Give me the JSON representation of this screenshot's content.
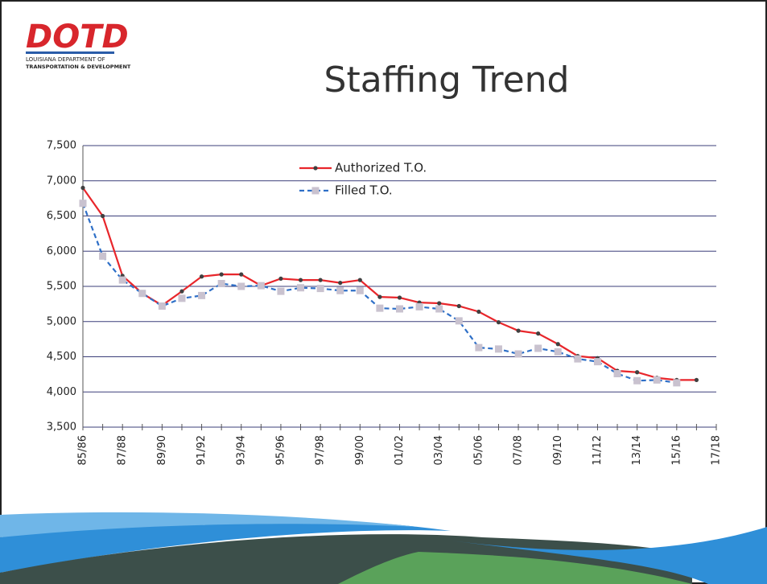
{
  "logo": {
    "mark": "DOTD",
    "line1": "LOUISIANA DEPARTMENT OF",
    "line2": "TRANSPORTATION & DEVELOPMENT"
  },
  "chart_data": {
    "type": "line",
    "title": "Staffing Trend",
    "categories": [
      "85/86",
      null,
      "87/88",
      null,
      "89/90",
      null,
      "91/92",
      null,
      "93/94",
      null,
      "95/96",
      null,
      "97/98",
      null,
      "99/00",
      null,
      "01/02",
      null,
      "03/04",
      null,
      "05/06",
      null,
      "07/08",
      null,
      "09/10",
      null,
      "11/12",
      null,
      "13/14",
      null,
      "15/16",
      null,
      "17/18"
    ],
    "series": [
      {
        "name": "Authorized T.O.",
        "color": "#e8262b",
        "marker_color": "#404040",
        "values": [
          6900,
          6500,
          5650,
          5400,
          5230,
          5430,
          5640,
          5670,
          5670,
          5510,
          5610,
          5590,
          5590,
          5550,
          5590,
          5350,
          5340,
          5270,
          5260,
          5220,
          5140,
          4990,
          4870,
          4830,
          4680,
          4510,
          4480,
          4300,
          4280,
          4200,
          4170,
          4170,
          null
        ]
      },
      {
        "name": "Filled T.O.",
        "color": "#2e6fc7",
        "marker_color": "#c9c2cf",
        "values": [
          6680,
          5930,
          5590,
          5400,
          5220,
          5330,
          5370,
          5540,
          5500,
          5510,
          5430,
          5480,
          5470,
          5440,
          5440,
          5190,
          5180,
          5210,
          5180,
          5010,
          4630,
          4610,
          4540,
          4620,
          4570,
          4470,
          4430,
          4260,
          4160,
          4170,
          4130,
          null,
          null
        ]
      }
    ],
    "ylim": [
      3500,
      7500
    ],
    "yticks": [
      {
        "value": 3500,
        "label": "3,500"
      },
      {
        "value": 4000,
        "label": "4,000"
      },
      {
        "value": 4500,
        "label": "4,500"
      },
      {
        "value": 5000,
        "label": "5,000"
      },
      {
        "value": 5500,
        "label": "5,500"
      },
      {
        "value": 6000,
        "label": "6,000"
      },
      {
        "value": 6500,
        "label": "6,500"
      },
      {
        "value": 7000,
        "label": "7,000"
      },
      {
        "value": 7500,
        "label": "7,500"
      }
    ],
    "grid": true,
    "legend": "top"
  }
}
